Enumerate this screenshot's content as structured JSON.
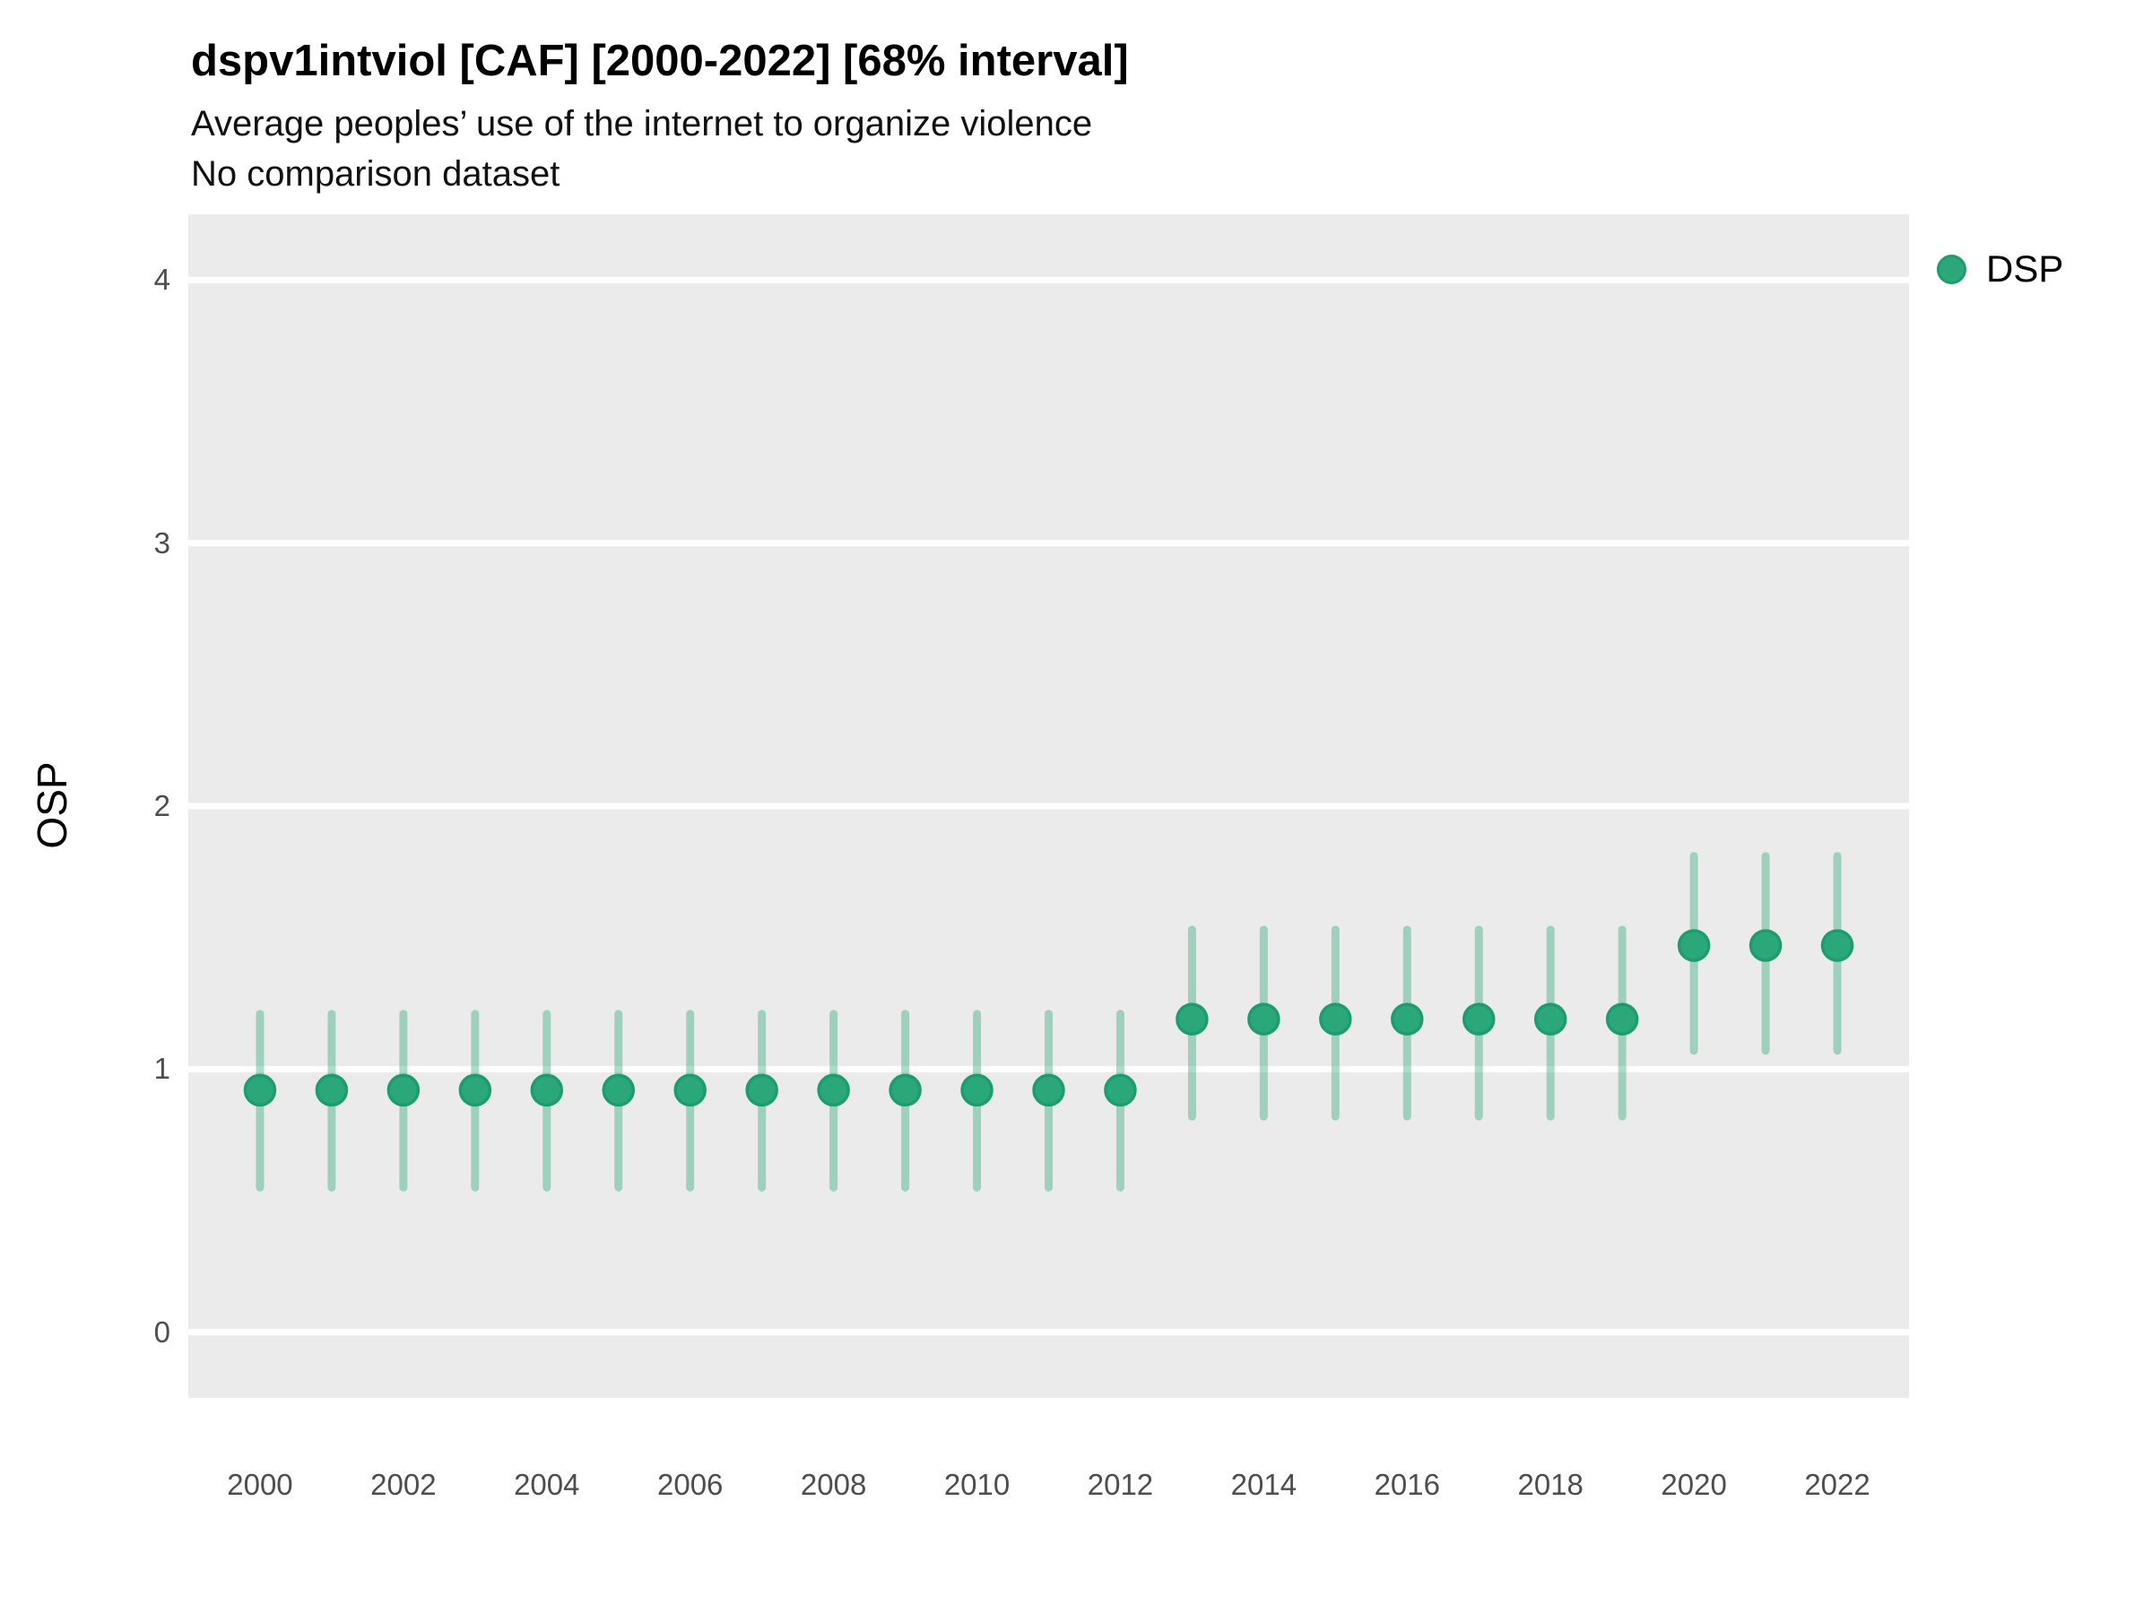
{
  "header": {
    "title": "dspv1intviol [CAF] [2000-2022] [68% interval]",
    "subtitle_line1": "Average peoples’ use of the internet to organize violence",
    "subtitle_line2": "No comparison dataset"
  },
  "legend": {
    "position": "right-top",
    "items": [
      {
        "label": "DSP",
        "color": "#2aa87a",
        "border_color": "#1f9c6e"
      }
    ]
  },
  "colors": {
    "point": "#2aa87a",
    "point_border": "#1f9c6e",
    "interval": "rgba(42,168,122,0.4)",
    "panel_bg": "#ebebeb",
    "gridline": "#ffffff",
    "tick_text": "#4d4d4d"
  },
  "chart_data": {
    "type": "pointrange",
    "title": "dspv1intviol [CAF] [2000-2022] [68% interval]",
    "subtitle": "Average peoples’ use of the internet to organize violence — No comparison dataset",
    "xlabel": "",
    "ylabel": "OSP",
    "ylim": [
      -0.25,
      4.25
    ],
    "yticks": [
      0,
      1,
      2,
      3,
      4
    ],
    "xlim": [
      1999,
      2023
    ],
    "xticks": [
      2000,
      2002,
      2004,
      2006,
      2008,
      2010,
      2012,
      2014,
      2016,
      2018,
      2020,
      2022
    ],
    "grid": "horizontal-major-only",
    "legend_position": "right-top",
    "interval_level": "68%",
    "series": [
      {
        "name": "DSP",
        "color": "#2aa87a",
        "points": [
          {
            "year": 2000,
            "value": 0.92,
            "lo": 0.55,
            "hi": 1.21
          },
          {
            "year": 2001,
            "value": 0.92,
            "lo": 0.55,
            "hi": 1.21
          },
          {
            "year": 2002,
            "value": 0.92,
            "lo": 0.55,
            "hi": 1.21
          },
          {
            "year": 2003,
            "value": 0.92,
            "lo": 0.55,
            "hi": 1.21
          },
          {
            "year": 2004,
            "value": 0.92,
            "lo": 0.55,
            "hi": 1.21
          },
          {
            "year": 2005,
            "value": 0.92,
            "lo": 0.55,
            "hi": 1.21
          },
          {
            "year": 2006,
            "value": 0.92,
            "lo": 0.55,
            "hi": 1.21
          },
          {
            "year": 2007,
            "value": 0.92,
            "lo": 0.55,
            "hi": 1.21
          },
          {
            "year": 2008,
            "value": 0.92,
            "lo": 0.55,
            "hi": 1.21
          },
          {
            "year": 2009,
            "value": 0.92,
            "lo": 0.55,
            "hi": 1.21
          },
          {
            "year": 2010,
            "value": 0.92,
            "lo": 0.55,
            "hi": 1.21
          },
          {
            "year": 2011,
            "value": 0.92,
            "lo": 0.55,
            "hi": 1.21
          },
          {
            "year": 2012,
            "value": 0.92,
            "lo": 0.55,
            "hi": 1.21
          },
          {
            "year": 2013,
            "value": 1.19,
            "lo": 0.82,
            "hi": 1.53
          },
          {
            "year": 2014,
            "value": 1.19,
            "lo": 0.82,
            "hi": 1.53
          },
          {
            "year": 2015,
            "value": 1.19,
            "lo": 0.82,
            "hi": 1.53
          },
          {
            "year": 2016,
            "value": 1.19,
            "lo": 0.82,
            "hi": 1.53
          },
          {
            "year": 2017,
            "value": 1.19,
            "lo": 0.82,
            "hi": 1.53
          },
          {
            "year": 2018,
            "value": 1.19,
            "lo": 0.82,
            "hi": 1.53
          },
          {
            "year": 2019,
            "value": 1.19,
            "lo": 0.82,
            "hi": 1.53
          },
          {
            "year": 2020,
            "value": 1.47,
            "lo": 1.07,
            "hi": 1.81
          },
          {
            "year": 2021,
            "value": 1.47,
            "lo": 1.07,
            "hi": 1.81
          },
          {
            "year": 2022,
            "value": 1.47,
            "lo": 1.07,
            "hi": 1.81
          }
        ]
      }
    ]
  }
}
